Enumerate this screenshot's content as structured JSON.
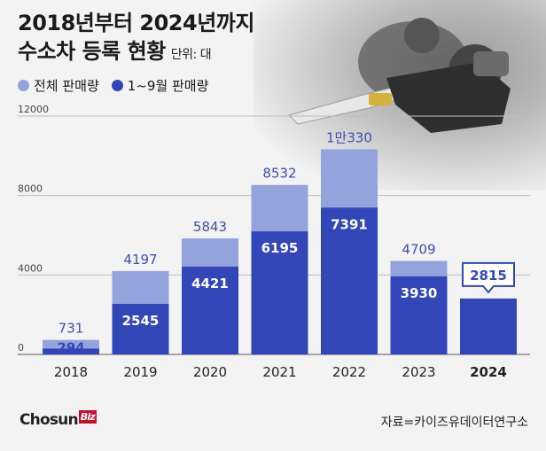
{
  "title_line1": "2018년부터 2024년까지",
  "title_line2": "수소차 등록 현황",
  "unit": "단위: 대",
  "legend": {
    "total": "전체 판매량",
    "partial": "1~9월 판매량"
  },
  "colors": {
    "total": "#95a3dc",
    "partial": "#3346b8",
    "label_total": "#3d4fae",
    "label_partial": "#ffffff"
  },
  "chart_data": {
    "type": "bar",
    "categories": [
      "2018",
      "2019",
      "2020",
      "2021",
      "2022",
      "2023",
      "2024"
    ],
    "series": [
      {
        "name": "전체 판매량",
        "values": [
          731,
          4197,
          5843,
          8532,
          10330,
          4709,
          null
        ]
      },
      {
        "name": "1~9월 판매량",
        "values": [
          294,
          2545,
          4421,
          6195,
          7391,
          3930,
          2815
        ]
      }
    ],
    "total_labels": [
      "731",
      "4197",
      "5843",
      "8532",
      "1만330",
      "4709",
      ""
    ],
    "partial_labels": [
      "294",
      "2545",
      "4421",
      "6195",
      "7391",
      "3930",
      "2815"
    ],
    "y_ticks": [
      "0",
      "4000",
      "8000",
      "12000"
    ],
    "ylim": [
      0,
      12000
    ],
    "grid": true,
    "legend_position": "top-left",
    "highlight_category": "2024"
  },
  "logo": {
    "main": "Chosun",
    "biz": "Biz"
  },
  "source": "자료=카이즈유데이터연구소"
}
